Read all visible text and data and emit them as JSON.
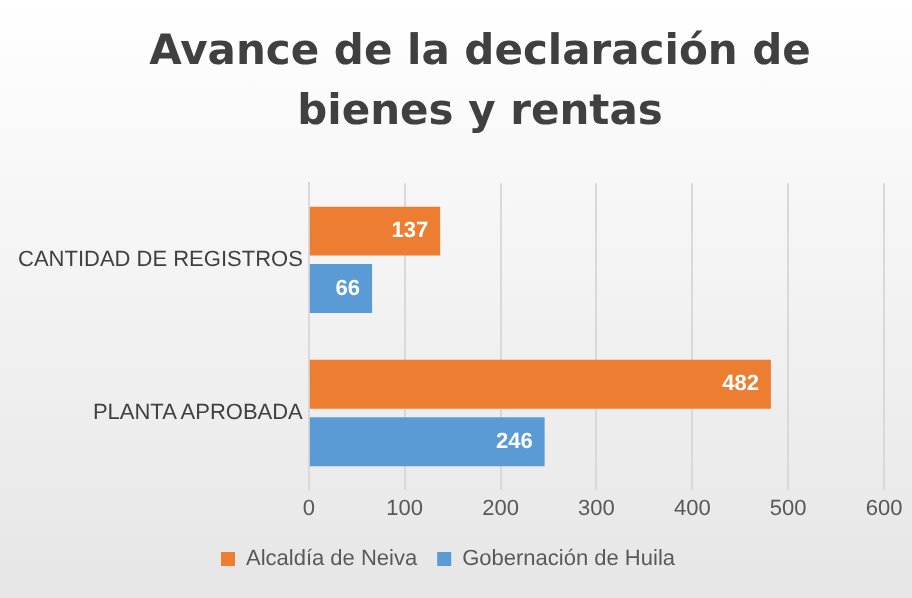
{
  "chart_data": {
    "type": "bar",
    "title": "Avance de la declaración de bienes y rentas",
    "orientation": "horizontal",
    "categories": [
      "CANTIDAD DE REGISTROS",
      "PLANTA APROBADA"
    ],
    "series": [
      {
        "name": "Alcaldía de Neiva",
        "color": "#ed7d31",
        "values": [
          137,
          482
        ]
      },
      {
        "name": "Gobernación de Huila",
        "color": "#5b9bd5",
        "values": [
          66,
          246
        ]
      }
    ],
    "xlim": [
      0,
      600
    ],
    "xticks": [
      0,
      100,
      200,
      300,
      400,
      500,
      600
    ],
    "grid": "x",
    "legend": "bottom",
    "data_labels": true
  }
}
